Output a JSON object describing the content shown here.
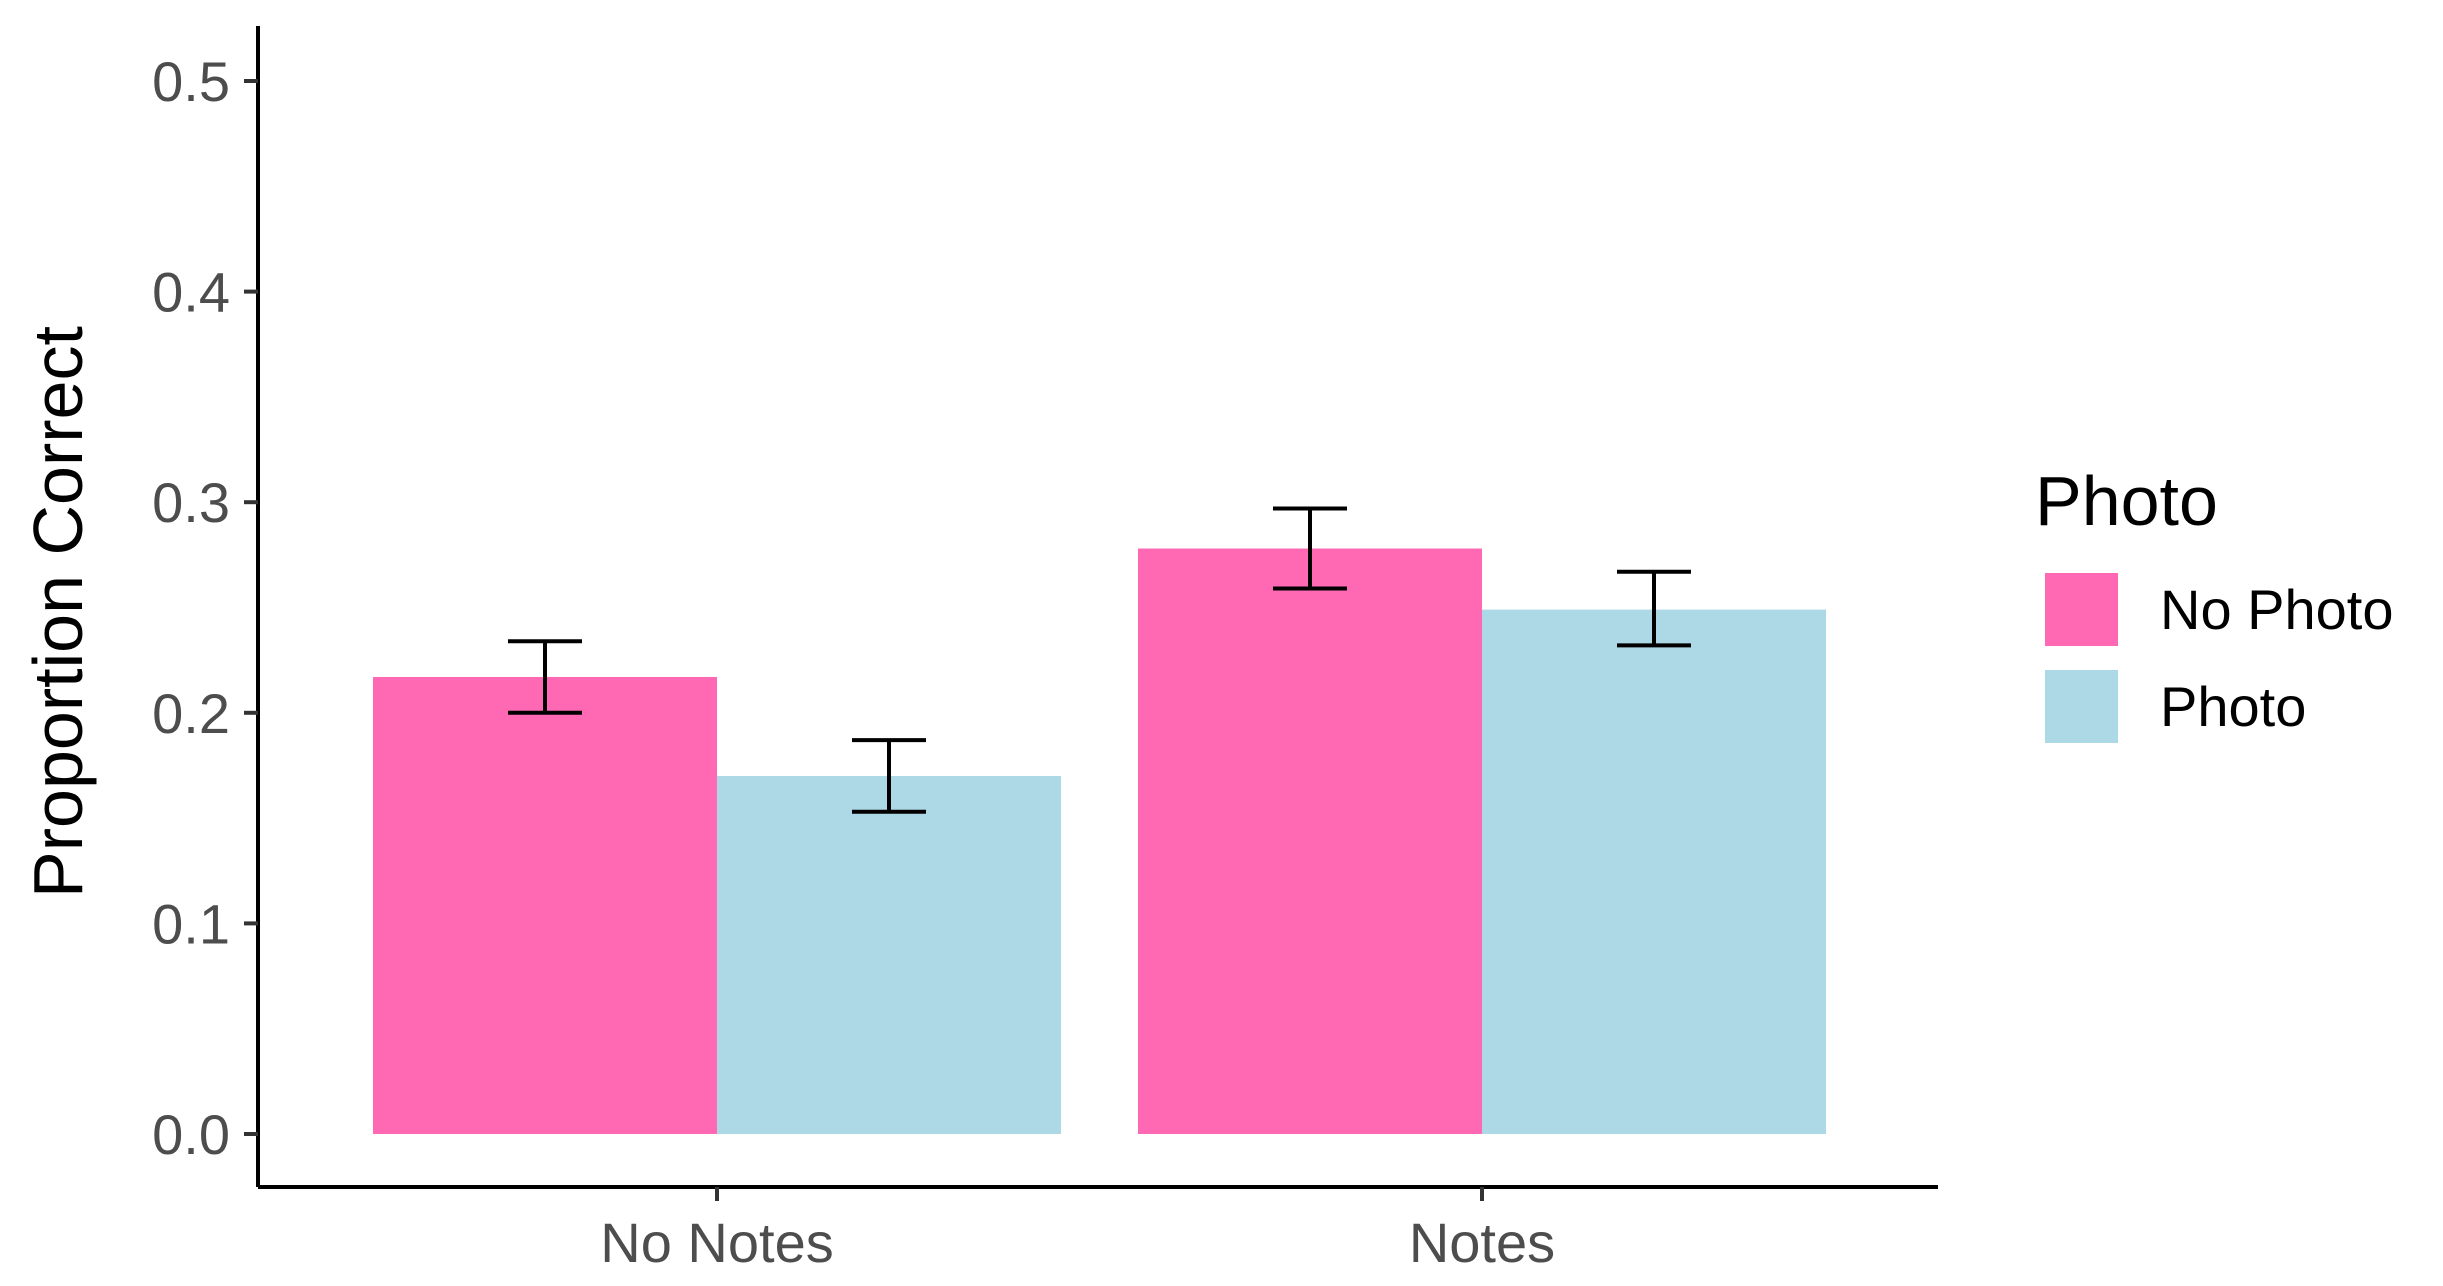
{
  "chart_data": {
    "type": "bar",
    "title": "",
    "xlabel": "",
    "ylabel": "Proportion Correct",
    "ylim": [
      0,
      0.5
    ],
    "yticks": [
      "0.0",
      "0.1",
      "0.2",
      "0.3",
      "0.4",
      "0.5"
    ],
    "ytick_values": [
      0,
      0.1,
      0.2,
      0.3,
      0.4,
      0.5
    ],
    "categories": [
      "No Notes",
      "Notes"
    ],
    "legend": {
      "title": "Photo",
      "position": "right"
    },
    "series": [
      {
        "name": "No Photo",
        "color": "#FF69B4",
        "values": [
          0.217,
          0.278
        ],
        "error_low": [
          0.2,
          0.259
        ],
        "error_high": [
          0.234,
          0.297
        ]
      },
      {
        "name": "Photo",
        "color": "#ADD8E6",
        "values": [
          0.17,
          0.249
        ],
        "error_low": [
          0.153,
          0.232
        ],
        "error_high": [
          0.187,
          0.267
        ]
      }
    ],
    "grid": false,
    "error_bars": true
  }
}
